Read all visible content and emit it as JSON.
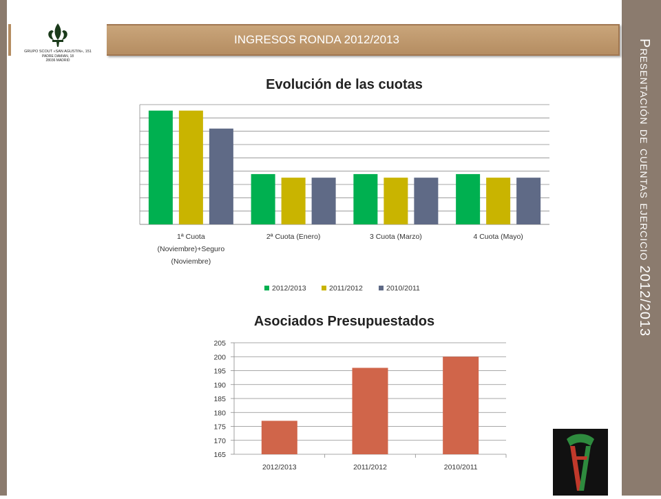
{
  "header": {
    "title": "INGRESOS RONDA 2012/2013"
  },
  "side_title": "Presentación de cuentas ejercicio 2012/2013",
  "logo": {
    "text_line1": "GRUPO SCOUT «SAN AGUSTIN», 151",
    "text_line2": "PADRE DAMIAN, 18",
    "text_line3": "28036 MADRID"
  },
  "colors": {
    "green": "#00b050",
    "gold": "#c9b400",
    "slate": "#5f6a86",
    "bar2": "#d0654a",
    "header": "#c09670",
    "side": "#8b7b6e"
  },
  "chart_data": [
    {
      "type": "bar",
      "title": "Evolución de las cuotas",
      "categories": [
        "1ª Cuota (Noviembre)+Seguro (Noviembre)",
        "2ª Cuota (Enero)",
        "3 Cuota (Marzo)",
        "4 Cuota (Mayo)"
      ],
      "category_lines": [
        [
          "1ª Cuota",
          "(Noviembre)+Seguro",
          "(Noviembre)"
        ],
        [
          "2ª Cuota (Enero)"
        ],
        [
          "3 Cuota (Marzo)"
        ],
        [
          "4 Cuota (Mayo)"
        ]
      ],
      "series": [
        {
          "name": "2012/2013",
          "values": [
            9.5,
            4.2,
            4.2,
            4.2
          ]
        },
        {
          "name": "2011/2012",
          "values": [
            9.5,
            3.9,
            3.9,
            3.9
          ]
        },
        {
          "name": "2010/2011",
          "values": [
            8.0,
            3.9,
            3.9,
            3.9
          ]
        }
      ],
      "ylim": [
        0,
        10
      ],
      "grid": true,
      "legend": "bottom"
    },
    {
      "type": "bar",
      "title": "Asociados Presupuestados",
      "categories": [
        "2012/2013",
        "2011/2012",
        "2010/2011"
      ],
      "values": [
        177,
        196,
        200
      ],
      "ylim": [
        165,
        205
      ],
      "yticks": [
        "165",
        "170",
        "175",
        "180",
        "185",
        "190",
        "195",
        "200",
        "205"
      ],
      "grid": true
    }
  ]
}
